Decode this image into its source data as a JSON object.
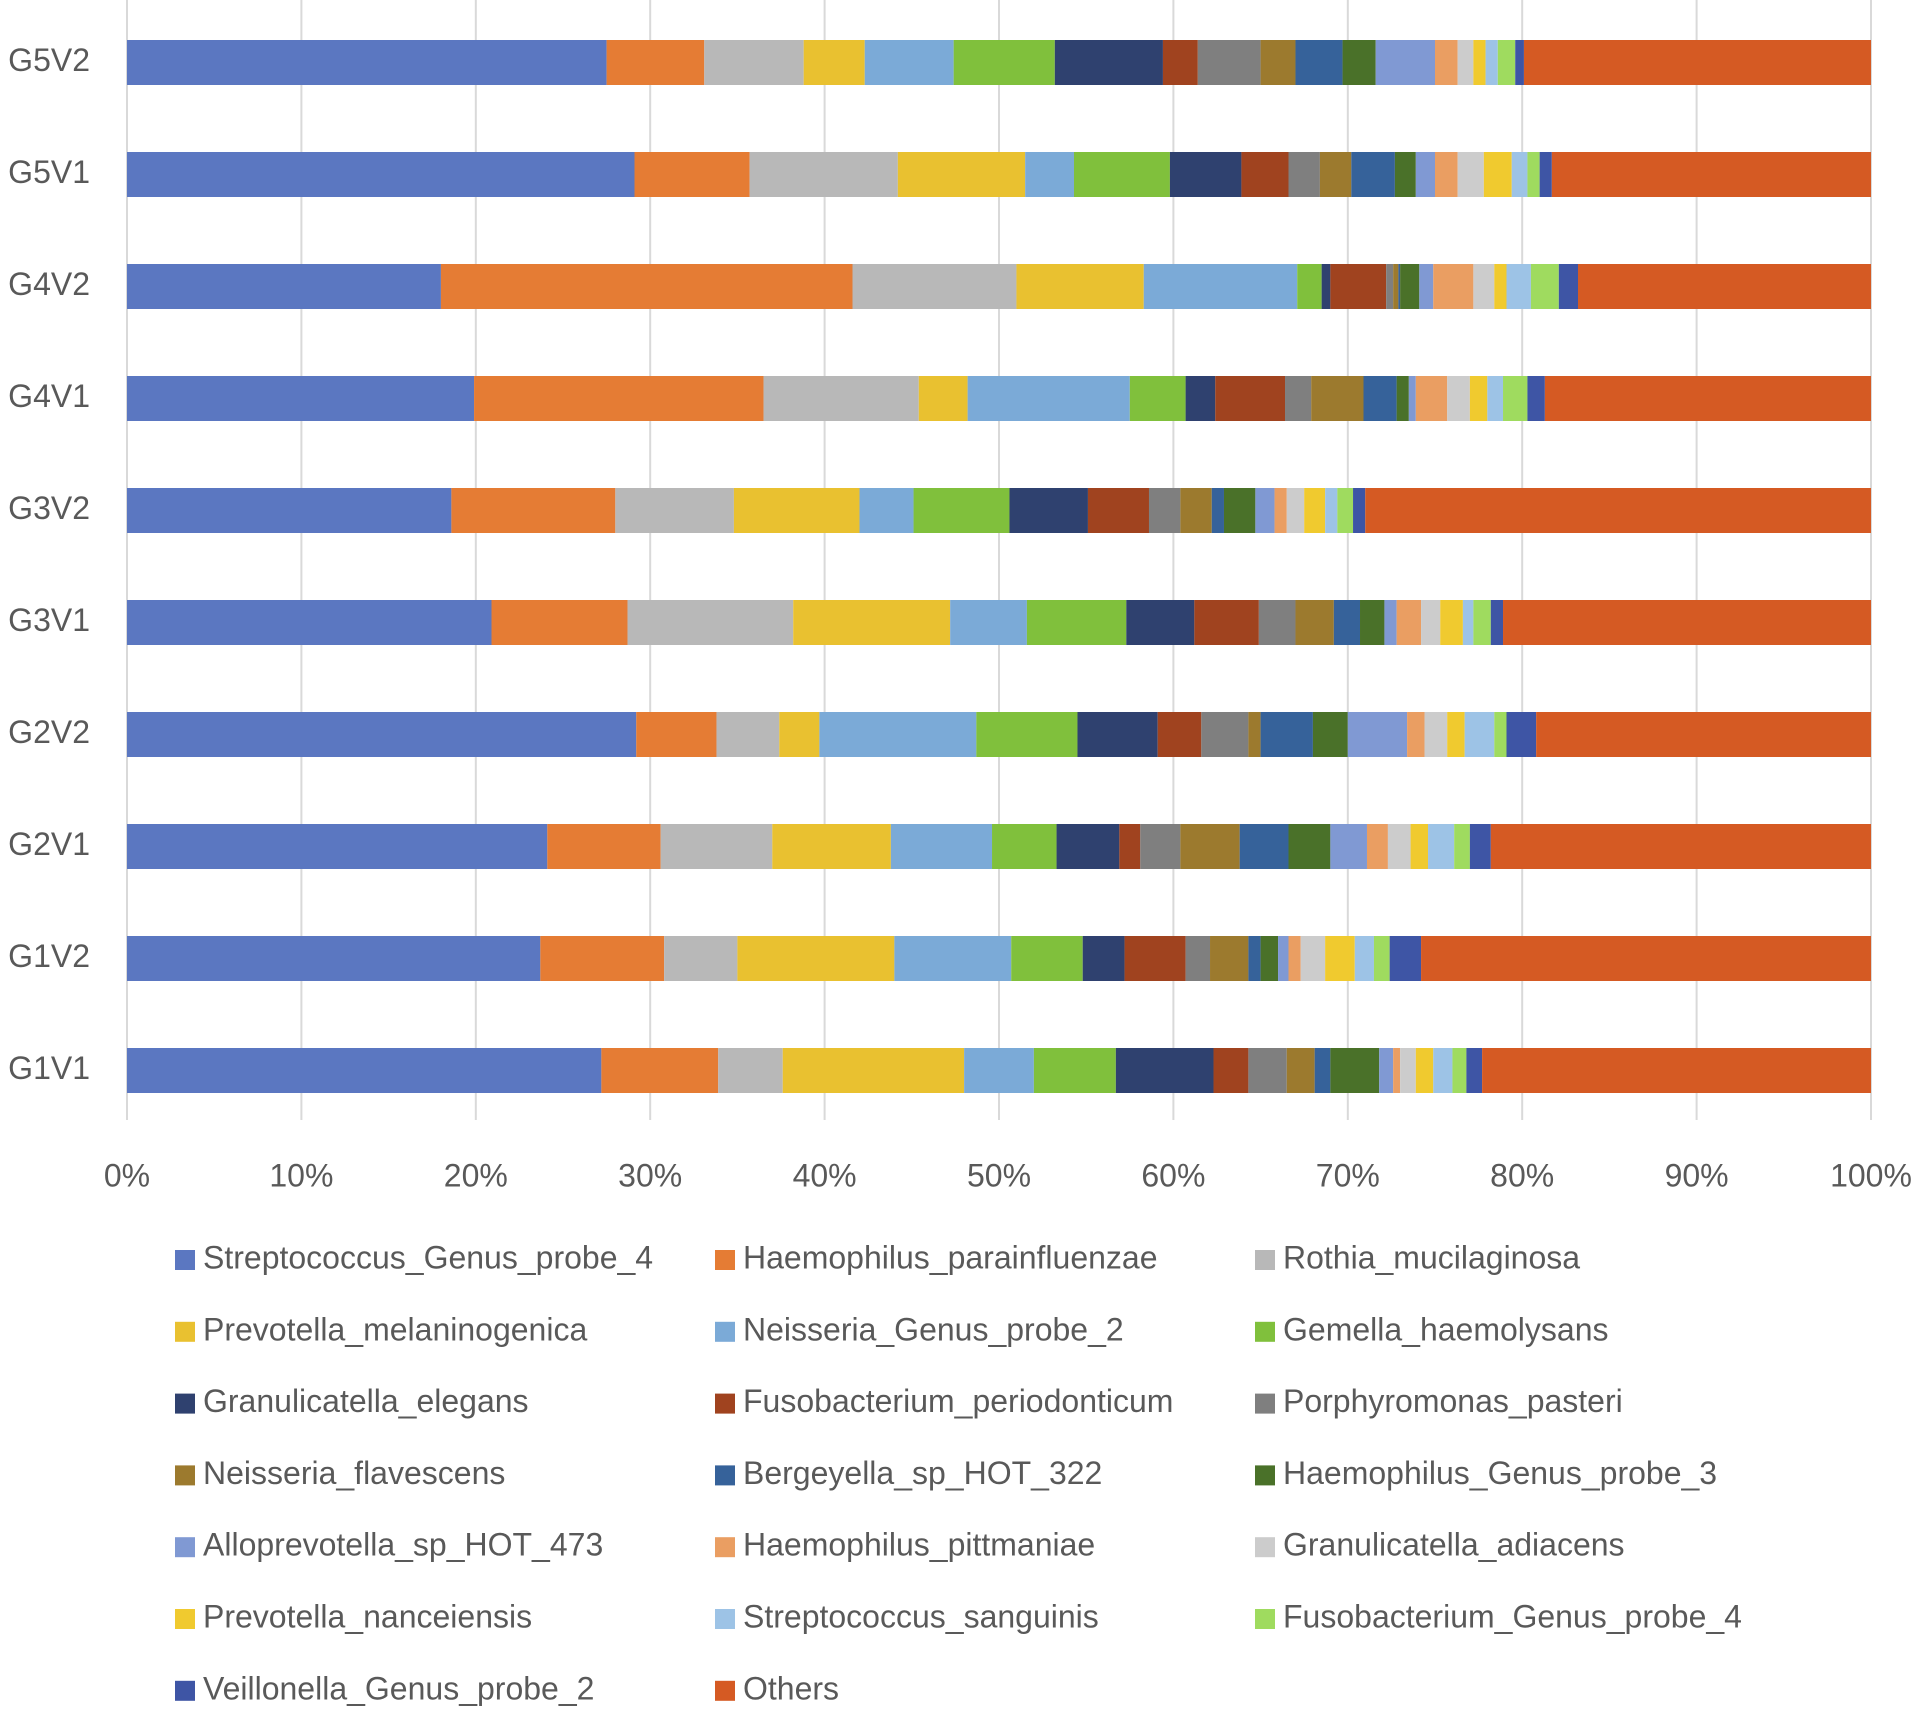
{
  "chart_data": {
    "type": "stacked-bar-horizontal",
    "categories": [
      "G5V2",
      "G5V1",
      "G4V2",
      "G4V1",
      "G3V2",
      "G3V1",
      "G2V2",
      "G2V1",
      "G1V2",
      "G1V1"
    ],
    "xlim": [
      0,
      100
    ],
    "xticks": [
      {
        "value": 0,
        "label": "0%"
      },
      {
        "value": 10,
        "label": "10%"
      },
      {
        "value": 20,
        "label": "20%"
      },
      {
        "value": 30,
        "label": "30%"
      },
      {
        "value": 40,
        "label": "40%"
      },
      {
        "value": 50,
        "label": "50%"
      },
      {
        "value": 60,
        "label": "60%"
      },
      {
        "value": 70,
        "label": "70%"
      },
      {
        "value": 80,
        "label": "80%"
      },
      {
        "value": 90,
        "label": "90%"
      },
      {
        "value": 100,
        "label": "100%"
      }
    ],
    "grid": true,
    "legend": "bottom",
    "series": [
      {
        "name": "Streptococcus_Genus_probe_4",
        "color": "#5b77c1",
        "values": [
          27.5,
          29.1,
          18.0,
          19.9,
          18.6,
          20.9,
          29.2,
          24.1,
          23.7,
          27.2
        ]
      },
      {
        "name": "Haemophilus_parainfluenzae",
        "color": "#e57c34",
        "values": [
          5.6,
          6.6,
          23.6,
          16.6,
          9.4,
          7.8,
          4.6,
          6.5,
          7.1,
          6.7
        ]
      },
      {
        "name": "Rothia_mucilaginosa",
        "color": "#b8b8b8",
        "values": [
          5.7,
          8.5,
          9.4,
          8.9,
          6.8,
          9.5,
          3.6,
          6.4,
          4.2,
          3.7
        ]
      },
      {
        "name": "Prevotella_melaninogenica",
        "color": "#e9c130",
        "values": [
          3.5,
          7.3,
          7.3,
          2.8,
          7.2,
          9.0,
          2.3,
          6.8,
          9.0,
          10.4
        ]
      },
      {
        "name": "Neisseria_Genus_probe_2",
        "color": "#7baad7",
        "values": [
          5.1,
          2.8,
          8.8,
          9.3,
          3.1,
          4.4,
          9.0,
          5.8,
          6.7,
          4.0
        ]
      },
      {
        "name": "Gemella_haemolysans",
        "color": "#80c03c",
        "values": [
          5.8,
          5.5,
          1.4,
          3.2,
          5.5,
          5.7,
          5.8,
          3.7,
          4.1,
          4.7
        ]
      },
      {
        "name": "Granulicatella_elegans",
        "color": "#2f416f",
        "values": [
          6.2,
          4.1,
          0.5,
          1.7,
          4.5,
          3.9,
          4.6,
          3.6,
          2.4,
          5.6
        ]
      },
      {
        "name": "Fusobacterium_periodonticum",
        "color": "#a0431f",
        "values": [
          2.0,
          2.7,
          3.2,
          4.0,
          3.5,
          3.7,
          2.5,
          1.2,
          3.5,
          2.0
        ]
      },
      {
        "name": "Porphyromonas_pasteri",
        "color": "#7f7f7f",
        "values": [
          3.6,
          1.8,
          0.4,
          1.5,
          1.8,
          2.1,
          2.7,
          2.3,
          1.4,
          2.2
        ]
      },
      {
        "name": "Neisseria_flavescens",
        "color": "#9c7a2e",
        "values": [
          2.0,
          1.8,
          0.3,
          3.0,
          1.8,
          2.2,
          0.7,
          3.4,
          2.2,
          1.6
        ]
      },
      {
        "name": "Bergeyella_sp_HOT_322",
        "color": "#36629a",
        "values": [
          2.7,
          2.5,
          0.1,
          1.9,
          0.7,
          1.5,
          3.0,
          2.8,
          0.7,
          0.9
        ]
      },
      {
        "name": "Haemophilus_Genus_probe_3",
        "color": "#4a7129",
        "values": [
          1.9,
          1.2,
          1.1,
          0.7,
          1.8,
          1.4,
          2.0,
          2.4,
          1.0,
          2.8
        ]
      },
      {
        "name": "Alloprevotella_sp_HOT_473",
        "color": "#8099d3",
        "values": [
          3.4,
          1.1,
          0.8,
          0.4,
          1.1,
          0.7,
          3.4,
          2.1,
          0.6,
          0.8
        ]
      },
      {
        "name": "Haemophilus_pittmaniae",
        "color": "#ea9e62",
        "values": [
          1.3,
          1.3,
          2.3,
          1.8,
          0.7,
          1.4,
          1.0,
          1.2,
          0.7,
          0.4
        ]
      },
      {
        "name": "Granulicatella_adiacens",
        "color": "#cccccc",
        "values": [
          0.9,
          1.5,
          1.2,
          1.3,
          1.0,
          1.1,
          1.3,
          1.3,
          1.4,
          0.9
        ]
      },
      {
        "name": "Prevotella_nanceiensis",
        "color": "#f0ca2f",
        "values": [
          0.7,
          1.6,
          0.7,
          1.0,
          1.2,
          1.3,
          1.0,
          1.0,
          1.7,
          1.0
        ]
      },
      {
        "name": "Streptococcus_sanguinis",
        "color": "#9dc3e6",
        "values": [
          0.7,
          0.9,
          1.4,
          0.9,
          0.7,
          0.6,
          1.7,
          1.5,
          1.1,
          1.1
        ]
      },
      {
        "name": "Fusobacterium_Genus_probe_4",
        "color": "#9fdb5f",
        "values": [
          1.0,
          0.7,
          1.6,
          1.4,
          0.9,
          1.0,
          0.7,
          0.9,
          0.9,
          0.8
        ]
      },
      {
        "name": "Veillonella_Genus_probe_2",
        "color": "#3e55a5",
        "values": [
          0.5,
          0.7,
          1.1,
          1.0,
          0.7,
          0.7,
          1.7,
          1.2,
          1.8,
          0.9
        ]
      },
      {
        "name": "Others",
        "color": "#d55a23",
        "values": [
          19.9,
          18.3,
          16.8,
          18.7,
          29.0,
          21.1,
          19.2,
          21.8,
          25.8,
          22.3
        ]
      }
    ]
  }
}
